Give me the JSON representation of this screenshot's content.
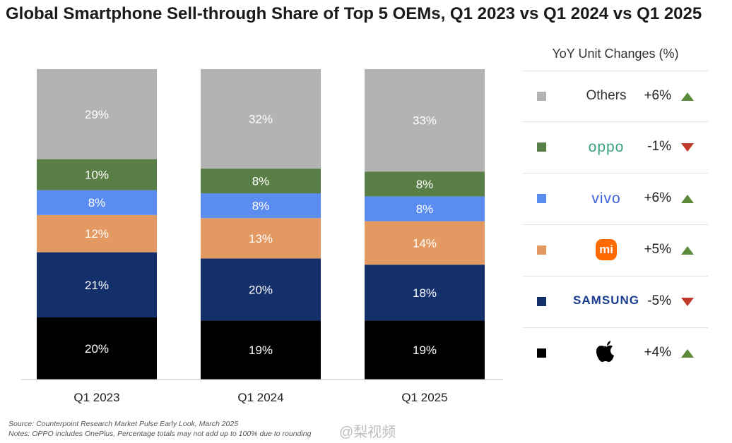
{
  "title": "Global Smartphone Sell-through Share of Top 5 OEMs, Q1 2023 vs Q1 2024 vs Q1 2025",
  "chart_data": {
    "type": "bar",
    "stacked": true,
    "categories": [
      "Q1 2023",
      "Q1 2024",
      "Q1 2025"
    ],
    "series": [
      {
        "name": "Apple",
        "color": "#000000",
        "values": [
          20,
          19,
          19
        ],
        "labels": [
          "20%",
          "19%",
          "19%"
        ]
      },
      {
        "name": "SAMSUNG",
        "color": "#14306b",
        "values": [
          21,
          20,
          18
        ],
        "labels": [
          "21%",
          "20%",
          "18%"
        ]
      },
      {
        "name": "Xiaomi",
        "color": "#e39a62",
        "values": [
          12,
          13,
          14
        ],
        "labels": [
          "12%",
          "13%",
          "14%"
        ]
      },
      {
        "name": "vivo",
        "color": "#5b8cf0",
        "values": [
          8,
          8,
          8
        ],
        "labels": [
          "8%",
          "8%",
          "8%"
        ]
      },
      {
        "name": "oppo",
        "color": "#5a7f46",
        "values": [
          10,
          8,
          8
        ],
        "labels": [
          "10%",
          "8%",
          "8%"
        ]
      },
      {
        "name": "Others",
        "color": "#b3b3b3",
        "values": [
          29,
          32,
          33
        ],
        "labels": [
          "29%",
          "32%",
          "33%"
        ]
      }
    ],
    "ylim": [
      0,
      100
    ],
    "grid": false,
    "legend_placement": "right"
  },
  "legend": {
    "heading": "YoY Unit Changes (%)",
    "rows": [
      {
        "name": "Others",
        "color": "#b3b3b3",
        "name_color": "#333333",
        "change": "+6%",
        "direction": "up"
      },
      {
        "name": "oppo",
        "color": "#5a7f46",
        "name_color": "#3aa37a",
        "change": "-1%",
        "direction": "down"
      },
      {
        "name": "vivo",
        "color": "#5b8cf0",
        "name_color": "#3b5fd9",
        "change": "+6%",
        "direction": "up"
      },
      {
        "name": "mi",
        "color": "#e39a62",
        "name_color": "#ff6a00",
        "change": "+5%",
        "direction": "up",
        "logo": "xiaomi"
      },
      {
        "name": "SAMSUNG",
        "color": "#14306b",
        "name_color": "#1a3d8f",
        "change": "-5%",
        "direction": "down"
      },
      {
        "name": "",
        "color": "#000000",
        "name_color": "#000000",
        "change": "+4%",
        "direction": "up",
        "logo": "apple"
      }
    ]
  },
  "source": {
    "line1": "Source: Counterpoint Research Market Pulse Early Look, March 2025",
    "line2": "Notes: OPPO includes OnePlus, Percentage totals may not add up to 100% due to rounding"
  },
  "watermark": "@梨视频"
}
